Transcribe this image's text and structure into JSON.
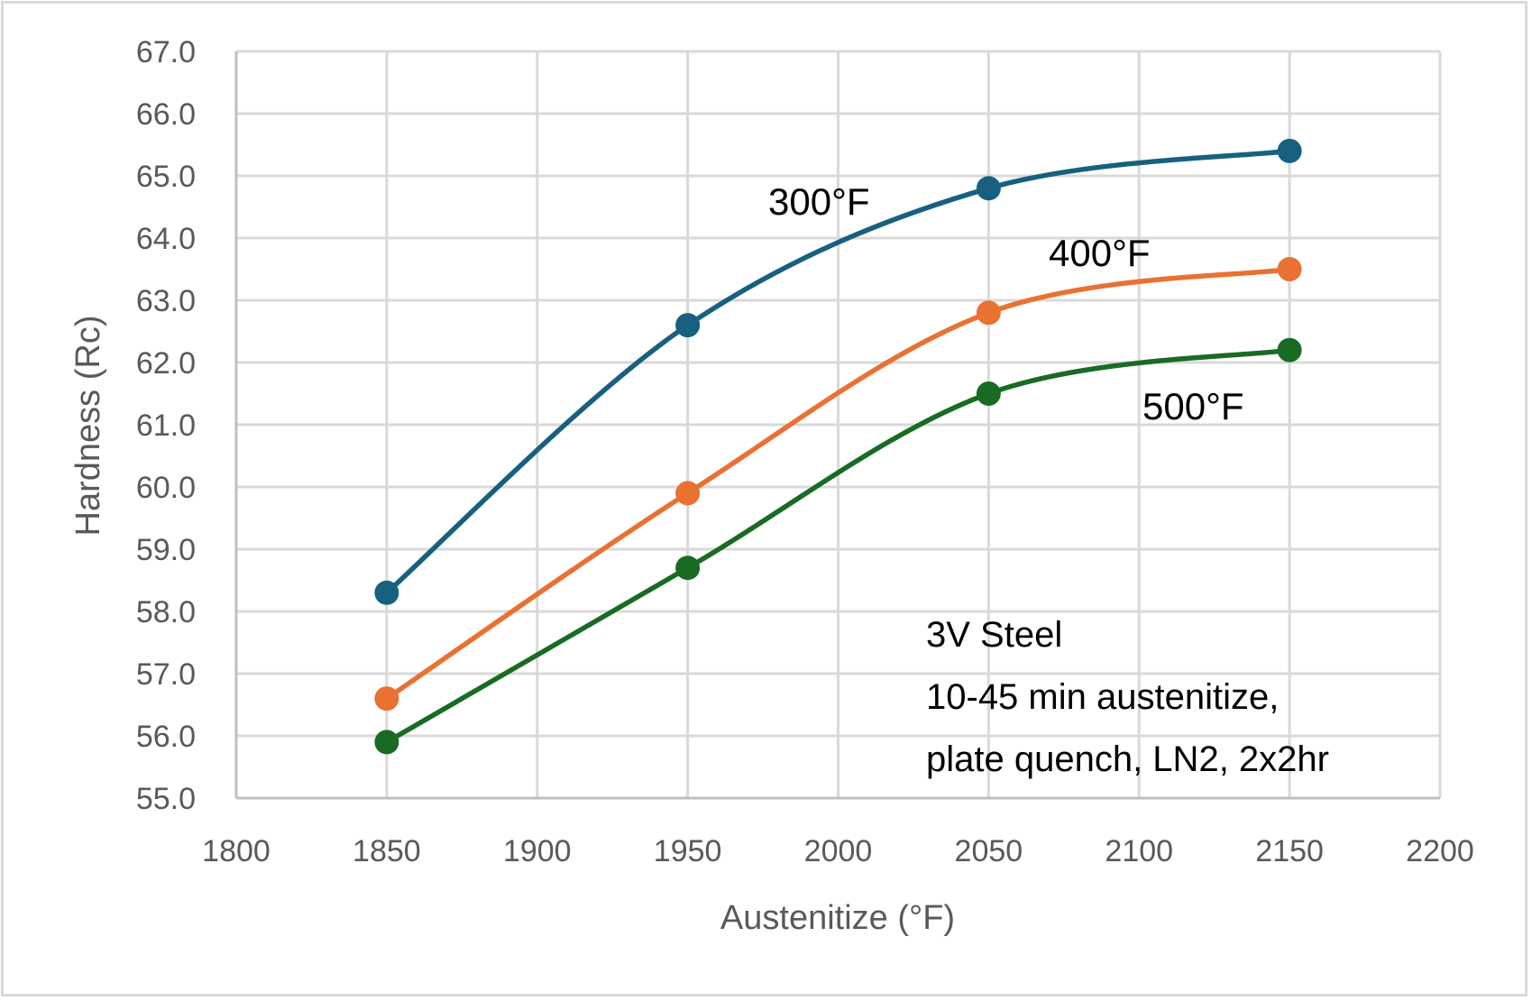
{
  "chart_data": {
    "type": "line",
    "title": "",
    "xlabel": "Austenitize (°F)",
    "ylabel": "Hardness (Rc)",
    "xlim": [
      1800,
      2200
    ],
    "ylim": [
      55.0,
      67.0
    ],
    "x_ticks": [
      "1800",
      "1850",
      "1900",
      "1950",
      "2000",
      "2050",
      "2100",
      "2150",
      "2200"
    ],
    "y_ticks": [
      "55.0",
      "56.0",
      "57.0",
      "58.0",
      "59.0",
      "60.0",
      "61.0",
      "62.0",
      "63.0",
      "64.0",
      "65.0",
      "66.0",
      "67.0"
    ],
    "grid": true,
    "smooth": true,
    "x": [
      1850,
      1950,
      2050,
      2150
    ],
    "series": [
      {
        "name": "300°F",
        "color": "#17607f",
        "values": [
          58.3,
          62.6,
          64.8,
          65.4
        ]
      },
      {
        "name": "400°F",
        "color": "#e97132",
        "values": [
          56.6,
          59.9,
          62.8,
          63.5
        ]
      },
      {
        "name": "500°F",
        "color": "#196b24",
        "values": [
          55.9,
          58.7,
          61.5,
          62.2
        ]
      }
    ],
    "annotation_lines": [
      "3V Steel",
      "10-45 min austenitize,",
      "plate quench, LN2, 2x2hr"
    ]
  }
}
